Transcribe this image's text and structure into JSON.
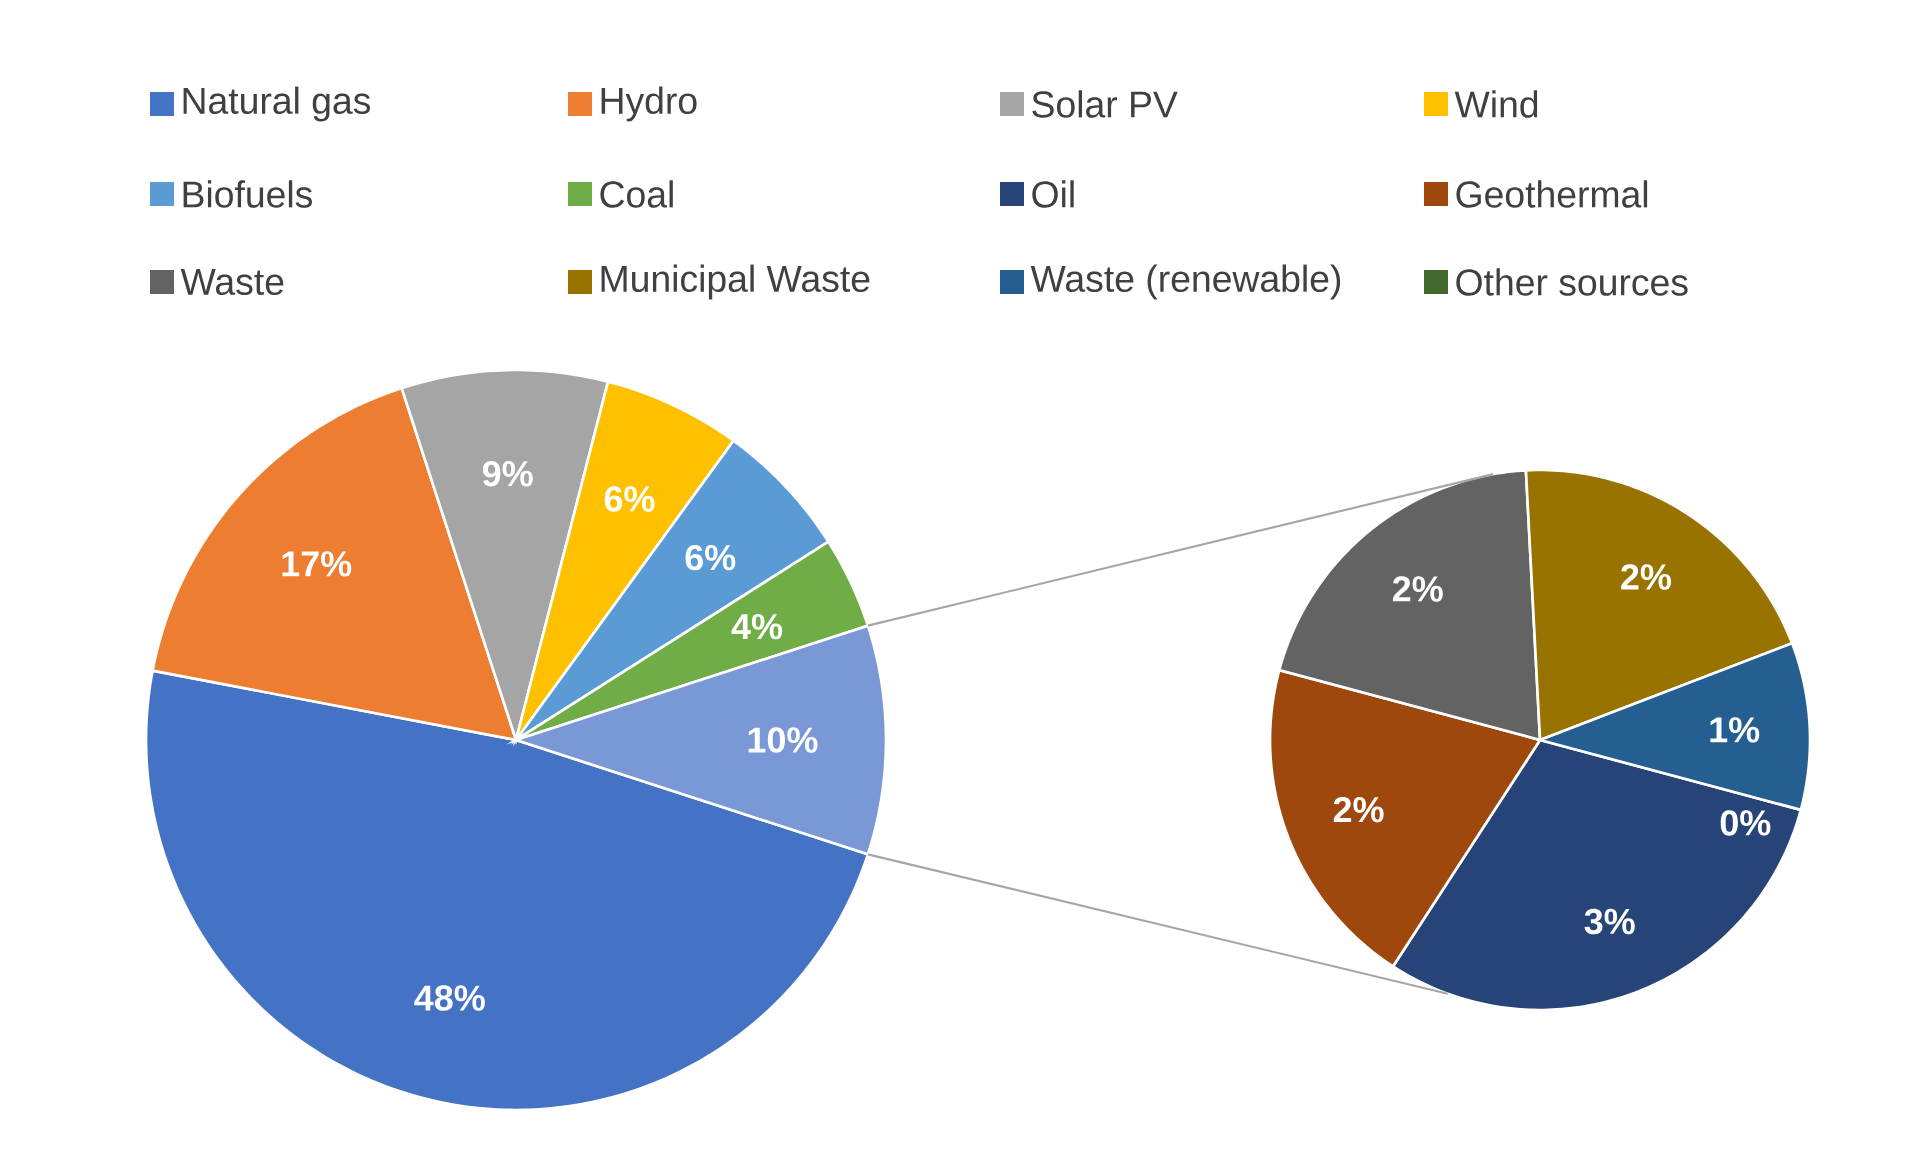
{
  "chart_data": [
    {
      "type": "pie",
      "categories": [
        "Natural gas",
        "Hydro",
        "Solar PV",
        "Wind",
        "Biofuels",
        "Coal",
        null
      ],
      "values": [
        48,
        17,
        9,
        6,
        6,
        4,
        10
      ],
      "value_labels": [
        "48%",
        "17%",
        "9%",
        "6%",
        "6%",
        "4%",
        "10%"
      ],
      "colors": [
        "#4472c4",
        "#ed7d31",
        "#a5a5a5",
        "#ffc000",
        "#5b9bd5",
        "#70ad47",
        "#7b98d6"
      ],
      "legend": "top"
    },
    {
      "type": "pie",
      "categories": [
        "Oil",
        "Geothermal",
        "Waste",
        "Municipal Waste",
        "Waste (renewable)",
        "Other sources"
      ],
      "values": [
        3,
        2,
        2,
        2,
        1,
        0
      ],
      "value_labels": [
        "3%",
        "2%",
        "2%",
        "2%",
        "1%",
        "0%"
      ],
      "colors": [
        "#264478",
        "#9e480e",
        "#636363",
        "#997300",
        "#255e91",
        "#43682b"
      ],
      "legend": "top"
    }
  ]
}
